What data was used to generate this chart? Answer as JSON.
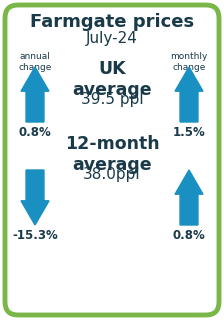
{
  "title_line1": "Farmgate prices",
  "title_line2": "July-24",
  "bg_color": "#ffffff",
  "border_color": "#7ab648",
  "arrow_color": "#1a8fc1",
  "text_dark": "#1a3a4a",
  "label_annual": "annual\nchange",
  "label_monthly": "monthly\nchange",
  "uk_avg_label": "UK\naverage",
  "uk_avg_value": "39.5 ppl",
  "month12_label": "12-month\naverage",
  "month12_value": "38.0ppl",
  "annual_pct_uk": "0.8%",
  "monthly_pct_uk": "1.5%",
  "annual_pct_12m": "-15.3%",
  "monthly_pct_12m": "0.8%",
  "title_fontsize": 13,
  "subtitle_fontsize": 11,
  "small_label_fontsize": 6.5,
  "pct_fontsize": 8.5,
  "main_label_fontsize": 12.5,
  "value_fontsize": 11
}
